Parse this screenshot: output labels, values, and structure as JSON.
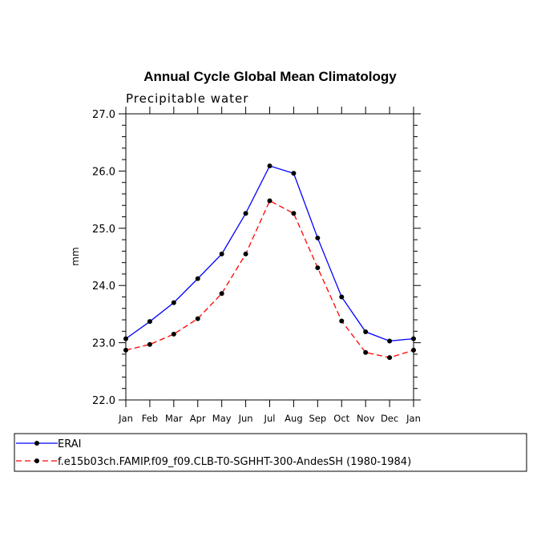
{
  "chart_data": {
    "type": "line",
    "title": "Annual Cycle Global Mean Climatology",
    "subtitle": "Precipitable water",
    "xlabel": "",
    "ylabel": "mm",
    "categories": [
      "Jan",
      "Feb",
      "Mar",
      "Apr",
      "May",
      "Jun",
      "Jul",
      "Aug",
      "Sep",
      "Oct",
      "Nov",
      "Dec",
      "Jan"
    ],
    "ylim": [
      22.0,
      27.0
    ],
    "yticks": [
      "22.0",
      "23.0",
      "24.0",
      "25.0",
      "26.0",
      "27.0"
    ],
    "grid": false,
    "legend_position": "bottom",
    "series": [
      {
        "name": "ERAI",
        "color": "#0000ff",
        "dash": "solid",
        "values": [
          23.07,
          23.37,
          23.7,
          24.12,
          24.55,
          25.26,
          26.09,
          25.96,
          24.83,
          23.8,
          23.19,
          23.03,
          23.07
        ]
      },
      {
        "name": "f.e15b03ch.FAMIP.f09_f09.CLB-T0-SGHHT-300-AndesSH (1980-1984)",
        "color": "#ff0000",
        "dash": "dashed",
        "values": [
          22.87,
          22.97,
          23.15,
          23.42,
          23.86,
          24.55,
          25.48,
          25.26,
          24.31,
          23.38,
          22.83,
          22.74,
          22.87
        ]
      }
    ]
  }
}
